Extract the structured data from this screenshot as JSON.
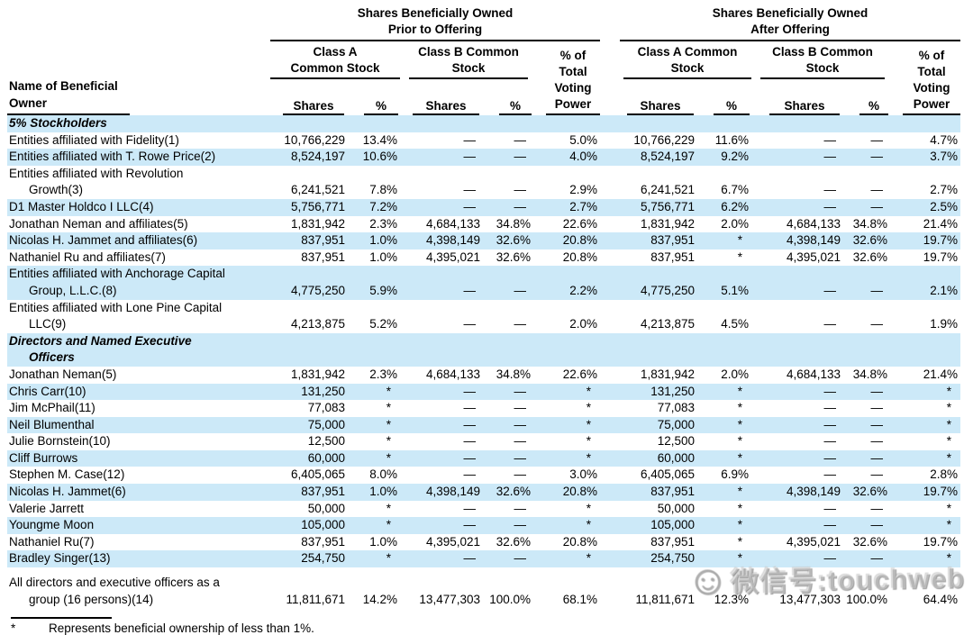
{
  "page": {
    "background_color": "#ffffff",
    "shade_color": "#cce9f8",
    "text_color": "#000000"
  },
  "table": {
    "name_header": "Name of Beneficial\nOwner",
    "groups": {
      "prior": {
        "title": "Shares Beneficially Owned\nPrior to Offering",
        "class_a": "Class A\nCommon Stock",
        "class_b": "Class B Common\nStock",
        "voting": "% of\nTotal\nVoting\nPower"
      },
      "after": {
        "title": "Shares Beneficially Owned\nAfter Offering",
        "class_a": "Class A Common\nStock",
        "class_b": "Class B Common\nStock",
        "voting": "% of\nTotal\nVoting\nPower"
      }
    },
    "col_labels": {
      "shares": "Shares",
      "pct": "%"
    },
    "rows": [
      {
        "type": "section",
        "shaded": true,
        "name": "5% Stockholders",
        "cells": []
      },
      {
        "type": "data",
        "shaded": false,
        "name": "Entities affiliated with Fidelity(1)",
        "cells": [
          "10,766,229",
          "13.4%",
          "—",
          "—",
          "5.0%",
          "10,766,229",
          "11.6%",
          "—",
          "—",
          "4.7%"
        ]
      },
      {
        "type": "data",
        "shaded": true,
        "name": "Entities affiliated with T. Rowe Price(2)",
        "cells": [
          "8,524,197",
          "10.6%",
          "—",
          "—",
          "4.0%",
          "8,524,197",
          "9.2%",
          "—",
          "—",
          "3.7%"
        ]
      },
      {
        "type": "data",
        "shaded": false,
        "name": "Entities affiliated with Revolution\nGrowth(3)",
        "cells": [
          "6,241,521",
          "7.8%",
          "—",
          "—",
          "2.9%",
          "6,241,521",
          "6.7%",
          "—",
          "—",
          "2.7%"
        ]
      },
      {
        "type": "data",
        "shaded": true,
        "name": "D1 Master Holdco I LLC(4)",
        "cells": [
          "5,756,771",
          "7.2%",
          "—",
          "—",
          "2.7%",
          "5,756,771",
          "6.2%",
          "—",
          "—",
          "2.5%"
        ]
      },
      {
        "type": "data",
        "shaded": false,
        "name": "Jonathan Neman and affiliates(5)",
        "cells": [
          "1,831,942",
          "2.3%",
          "4,684,133",
          "34.8%",
          "22.6%",
          "1,831,942",
          "2.0%",
          "4,684,133",
          "34.8%",
          "21.4%"
        ]
      },
      {
        "type": "data",
        "shaded": true,
        "name": "Nicolas H. Jammet and affiliates(6)",
        "cells": [
          "837,951",
          "1.0%",
          "4,398,149",
          "32.6%",
          "20.8%",
          "837,951",
          "*",
          "4,398,149",
          "32.6%",
          "19.7%"
        ]
      },
      {
        "type": "data",
        "shaded": false,
        "name": "Nathaniel Ru and affiliates(7)",
        "cells": [
          "837,951",
          "1.0%",
          "4,395,021",
          "32.6%",
          "20.8%",
          "837,951",
          "*",
          "4,395,021",
          "32.6%",
          "19.7%"
        ]
      },
      {
        "type": "data",
        "shaded": true,
        "name": "Entities affiliated with Anchorage Capital\nGroup, L.L.C.(8)",
        "cells": [
          "4,775,250",
          "5.9%",
          "—",
          "—",
          "2.2%",
          "4,775,250",
          "5.1%",
          "—",
          "—",
          "2.1%"
        ]
      },
      {
        "type": "data",
        "shaded": false,
        "name": "Entities affiliated with Lone Pine Capital\nLLC(9)",
        "cells": [
          "4,213,875",
          "5.2%",
          "—",
          "—",
          "2.0%",
          "4,213,875",
          "4.5%",
          "—",
          "—",
          "1.9%"
        ]
      },
      {
        "type": "section",
        "shaded": true,
        "name": "Directors and Named Executive\nOfficers",
        "cells": []
      },
      {
        "type": "data",
        "shaded": false,
        "name": "Jonathan Neman(5)",
        "cells": [
          "1,831,942",
          "2.3%",
          "4,684,133",
          "34.8%",
          "22.6%",
          "1,831,942",
          "2.0%",
          "4,684,133",
          "34.8%",
          "21.4%"
        ]
      },
      {
        "type": "data",
        "shaded": true,
        "name": "Chris Carr(10)",
        "cells": [
          "131,250",
          "*",
          "—",
          "—",
          "*",
          "131,250",
          "*",
          "—",
          "—",
          "*"
        ]
      },
      {
        "type": "data",
        "shaded": false,
        "name": "Jim McPhail(11)",
        "cells": [
          "77,083",
          "*",
          "—",
          "—",
          "*",
          "77,083",
          "*",
          "—",
          "—",
          "*"
        ]
      },
      {
        "type": "data",
        "shaded": true,
        "name": "Neil Blumenthal",
        "cells": [
          "75,000",
          "*",
          "—",
          "—",
          "*",
          "75,000",
          "*",
          "—",
          "—",
          "*"
        ]
      },
      {
        "type": "data",
        "shaded": false,
        "name": "Julie Bornstein(10)",
        "cells": [
          "12,500",
          "*",
          "—",
          "—",
          "*",
          "12,500",
          "*",
          "—",
          "—",
          "*"
        ]
      },
      {
        "type": "data",
        "shaded": true,
        "name": "Cliff Burrows",
        "cells": [
          "60,000",
          "*",
          "—",
          "—",
          "*",
          "60,000",
          "*",
          "—",
          "—",
          "*"
        ]
      },
      {
        "type": "data",
        "shaded": false,
        "name": "Stephen M. Case(12)",
        "cells": [
          "6,405,065",
          "8.0%",
          "—",
          "—",
          "3.0%",
          "6,405,065",
          "6.9%",
          "—",
          "—",
          "2.8%"
        ]
      },
      {
        "type": "data",
        "shaded": true,
        "name": "Nicolas H. Jammet(6)",
        "cells": [
          "837,951",
          "1.0%",
          "4,398,149",
          "32.6%",
          "20.8%",
          "837,951",
          "*",
          "4,398,149",
          "32.6%",
          "19.7%"
        ]
      },
      {
        "type": "data",
        "shaded": false,
        "name": "Valerie Jarrett",
        "cells": [
          "50,000",
          "*",
          "—",
          "—",
          "*",
          "50,000",
          "*",
          "—",
          "—",
          "*"
        ]
      },
      {
        "type": "data",
        "shaded": true,
        "name": "Youngme Moon",
        "cells": [
          "105,000",
          "*",
          "—",
          "—",
          "*",
          "105,000",
          "*",
          "—",
          "—",
          "*"
        ]
      },
      {
        "type": "data",
        "shaded": false,
        "name": "Nathaniel Ru(7)",
        "cells": [
          "837,951",
          "1.0%",
          "4,395,021",
          "32.6%",
          "20.8%",
          "837,951",
          "*",
          "4,395,021",
          "32.6%",
          "19.7%"
        ]
      },
      {
        "type": "data",
        "shaded": true,
        "name": "Bradley Singer(13)",
        "cells": [
          "254,750",
          "*",
          "—",
          "—",
          "*",
          "254,750",
          "*",
          "—",
          "—",
          "*"
        ]
      },
      {
        "type": "total",
        "shaded": false,
        "name": "All directors and executive officers as a\ngroup (16 persons)(14)",
        "cells": [
          "11,811,671",
          "14.2%",
          "13,477,303",
          "100.0%",
          "68.1%",
          "11,811,671",
          "12.3%",
          "13,477,303",
          "100.0%",
          "64.4%"
        ]
      }
    ]
  },
  "footnote": {
    "symbol": "*",
    "text": "Represents beneficial ownership of less than 1%."
  },
  "watermark": {
    "emoji": "☺",
    "text": "微信号:touchweb"
  }
}
